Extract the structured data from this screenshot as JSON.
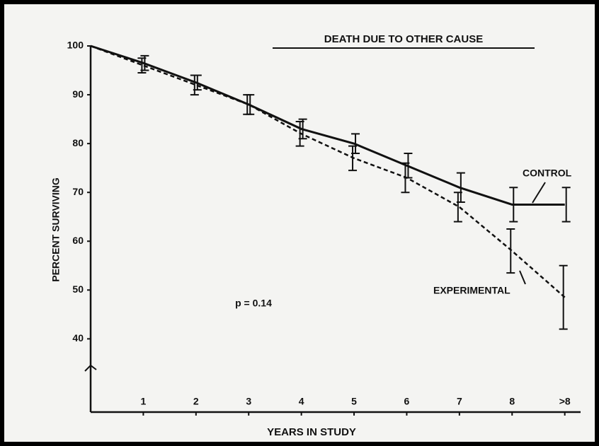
{
  "chart_data": {
    "type": "line",
    "title": "DEATH DUE TO OTHER CAUSE",
    "x_label": "YEARS IN STUDY",
    "y_label": "PERCENT SURVIVING",
    "annotation": "p = 0.14",
    "x": [
      0,
      1,
      2,
      3,
      4,
      5,
      6,
      7,
      8,
      9
    ],
    "xlim": [
      0,
      9.3
    ],
    "xticks": [
      1,
      2,
      3,
      4,
      5,
      6,
      7,
      8,
      {
        "value": 9,
        "label": ">8"
      }
    ],
    "ylim": [
      25,
      100
    ],
    "yticks": [
      40,
      50,
      60,
      70,
      80,
      90,
      100
    ],
    "grid": false,
    "series": [
      {
        "name": "CONTROL",
        "color": "#111111",
        "dashed": false,
        "values": [
          100,
          96.5,
          92.5,
          88,
          83,
          80,
          75.5,
          71,
          67.5,
          67.5
        ],
        "errors": [
          null,
          1.5,
          1.5,
          2,
          2,
          2,
          2.5,
          3,
          3.5,
          3.5
        ]
      },
      {
        "name": "EXPERIMENTAL",
        "color": "#111111",
        "dashed": true,
        "values": [
          100,
          96,
          92,
          88,
          82,
          77,
          73,
          67,
          58,
          48.5
        ],
        "errors": [
          null,
          1.5,
          2,
          2,
          2.5,
          2.5,
          3,
          3,
          4.5,
          6.5
        ]
      }
    ]
  }
}
